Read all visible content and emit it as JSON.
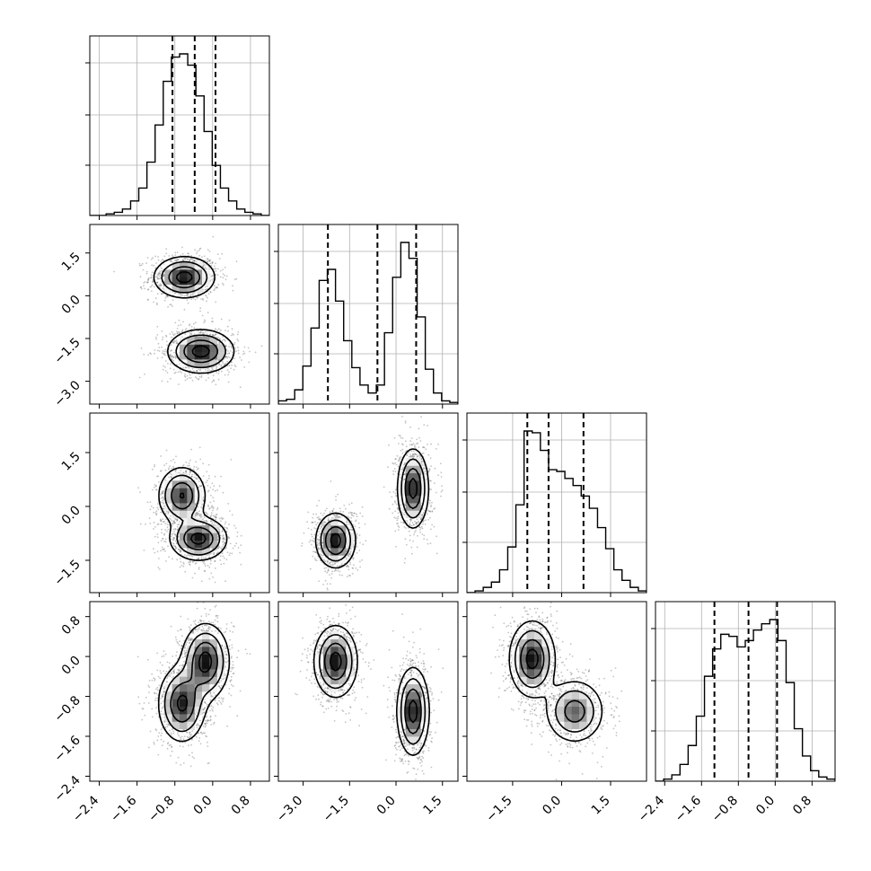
{
  "chart_data": {
    "type": "corner",
    "title": "",
    "grid": true,
    "colors": {
      "hist": "#000000",
      "contour": "#000000",
      "points": "#555555",
      "density": "#000000",
      "grid": "#b0b0b0"
    },
    "params": [
      {
        "xlim": [
          -2.6,
          1.2
        ],
        "ylim": [
          -2.6,
          1.2
        ],
        "quantiles": [
          -0.85,
          -0.38,
          0.06
        ],
        "ticks": [
          -2.4,
          -1.6,
          -0.8,
          0.0,
          0.8
        ],
        "tick_labels": [
          "−2.4",
          "−1.6",
          "−0.8",
          "0.0",
          "0.8"
        ],
        "hist": [
          0,
          0,
          1,
          2,
          4,
          9,
          17,
          33,
          56,
          83,
          98,
          100,
          93,
          74,
          52,
          31,
          17,
          9,
          4,
          2,
          1,
          0
        ]
      },
      {
        "xlim": [
          -3.8,
          2.0
        ],
        "ylim": [
          -3.8,
          2.5
        ],
        "quantiles": [
          -2.2,
          -0.6,
          0.65
        ],
        "ticks": [
          -3.0,
          -1.5,
          0.0,
          1.5
        ],
        "tick_labels": [
          "−3.0",
          "−1.5",
          "0.0",
          "1.5"
        ],
        "hist": [
          2,
          3,
          9,
          24,
          48,
          78,
          85,
          65,
          40,
          23,
          12,
          7,
          12,
          45,
          80,
          102,
          92,
          55,
          22,
          7,
          2,
          1
        ]
      },
      {
        "xlim": [
          -2.9,
          2.6
        ],
        "ylim": [
          -2.4,
          2.6
        ],
        "quantiles": [
          -1.05,
          -0.4,
          0.67
        ],
        "ticks": [
          -1.5,
          0.0,
          1.5
        ],
        "tick_labels": [
          "−1.5",
          "0.0",
          "1.5"
        ],
        "hist": [
          0,
          1,
          3,
          6,
          13,
          26,
          50,
          92,
          91,
          81,
          70,
          69,
          65,
          61,
          55,
          48,
          37,
          25,
          13,
          7,
          3,
          1
        ]
      },
      {
        "xlim": [
          -2.6,
          1.3
        ],
        "ylim": [
          -2.5,
          1.1
        ],
        "quantiles": [
          -1.32,
          -0.58,
          0.04
        ],
        "ticks": [
          -2.4,
          -1.6,
          -0.8,
          0.0,
          0.8
        ],
        "tick_labels": [
          "−2.4",
          "−1.6",
          "−0.8",
          "0.0",
          "0.8"
        ],
        "hist": [
          0,
          1,
          3,
          8,
          17,
          31,
          50,
          63,
          70,
          69,
          64,
          67,
          72,
          75,
          77,
          67,
          47,
          25,
          12,
          5,
          2,
          1
        ]
      }
    ],
    "pairs": [
      {
        "row": 1,
        "col": 0,
        "components": [
          {
            "mx": -0.6,
            "my": 0.65,
            "sx": 0.32,
            "sy": 0.36,
            "w": 1.0,
            "rho": 0.0
          },
          {
            "mx": -0.25,
            "my": -1.95,
            "sx": 0.35,
            "sy": 0.38,
            "w": 1.0,
            "rho": 0.0
          }
        ]
      },
      {
        "row": 2,
        "col": 0,
        "components": [
          {
            "mx": -0.65,
            "my": 0.3,
            "sx": 0.25,
            "sy": 0.4,
            "w": 0.9,
            "rho": 0.0
          },
          {
            "mx": -0.3,
            "my": -0.9,
            "sx": 0.3,
            "sy": 0.3,
            "w": 1.0,
            "rho": 0.0
          }
        ]
      },
      {
        "row": 3,
        "col": 0,
        "components": [
          {
            "mx": -0.15,
            "my": -0.1,
            "sx": 0.25,
            "sy": 0.38,
            "w": 1.0,
            "rho": 0.0
          },
          {
            "mx": -0.65,
            "my": -0.95,
            "sx": 0.25,
            "sy": 0.38,
            "w": 0.95,
            "rho": 0.0
          }
        ]
      },
      {
        "row": 2,
        "col": 1,
        "components": [
          {
            "mx": -1.95,
            "my": -0.95,
            "sx": 0.32,
            "sy": 0.38,
            "w": 1.0,
            "rho": 0.0
          },
          {
            "mx": 0.55,
            "my": 0.5,
            "sx": 0.25,
            "sy": 0.55,
            "w": 1.0,
            "rho": 0.0
          }
        ]
      },
      {
        "row": 3,
        "col": 1,
        "components": [
          {
            "mx": -1.95,
            "my": -0.1,
            "sx": 0.35,
            "sy": 0.36,
            "w": 1.0,
            "rho": 0.0
          },
          {
            "mx": 0.55,
            "my": -1.1,
            "sx": 0.26,
            "sy": 0.44,
            "w": 1.0,
            "rho": 0.0
          }
        ]
      },
      {
        "row": 3,
        "col": 2,
        "components": [
          {
            "mx": -0.9,
            "my": -0.05,
            "sx": 0.35,
            "sy": 0.38,
            "w": 1.0,
            "rho": 0.0
          },
          {
            "mx": 0.4,
            "my": -1.1,
            "sx": 0.45,
            "sy": 0.32,
            "w": 0.75,
            "rho": 0.0
          }
        ]
      }
    ]
  }
}
